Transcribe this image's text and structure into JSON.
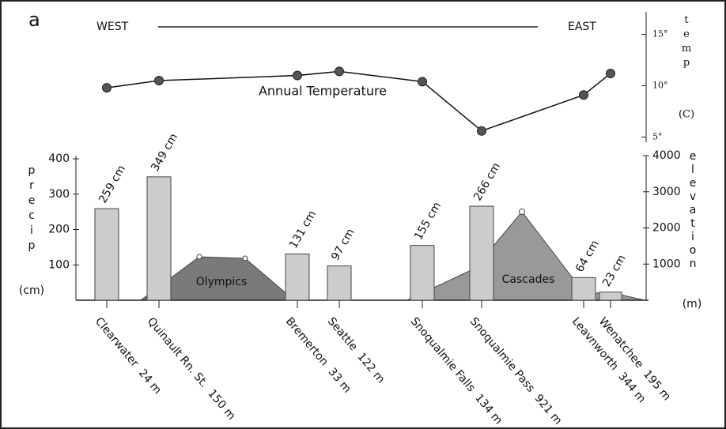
{
  "chart_data": [
    {
      "type": "line",
      "panel_label": "a",
      "west_label": "WEST",
      "east_label": "EAST",
      "annotation": "Annual Temperature",
      "ylabel": "temp",
      "yunit": "(C)",
      "ylim": [
        4.5,
        17.2
      ],
      "yticks": [
        {
          "value": 5,
          "label": "5°"
        },
        {
          "value": 10,
          "label": "10°"
        },
        {
          "value": 15,
          "label": "15°"
        }
      ],
      "color": "#555555",
      "values": [
        9.8,
        10.5,
        11.0,
        11.4,
        10.4,
        5.6,
        9.1,
        11.2
      ]
    },
    {
      "type": "bar",
      "categories": [
        "Clearwater  24 m",
        "Quinault Rn. St.  150 m",
        "Bremerton  33 m",
        "Seattle  122 m",
        "Snoqualmie Falls  134 m",
        "Snoqualmie Pass  921 m",
        "Leavnworth  344 m",
        "Wenatchee  195 m"
      ],
      "values": [
        259,
        349,
        131,
        97,
        155,
        266,
        64,
        23
      ],
      "value_labels": [
        "259 cm",
        "349 cm",
        "131 cm",
        "97 cm",
        "155 cm",
        "266 cm",
        "64 cm",
        "23 cm"
      ],
      "color": "#cccccc",
      "ylabel": "precip",
      "yunit": "(cm)",
      "ylim": [
        0,
        400
      ],
      "yticks": [
        100,
        200,
        300,
        400
      ],
      "y2label": "elevation",
      "y2unit": "(m)",
      "y2lim": [
        0,
        4000
      ],
      "y2ticks": [
        1000,
        2000,
        3000,
        4000
      ],
      "annotations": [
        "Olympics",
        "Cascades"
      ]
    }
  ]
}
